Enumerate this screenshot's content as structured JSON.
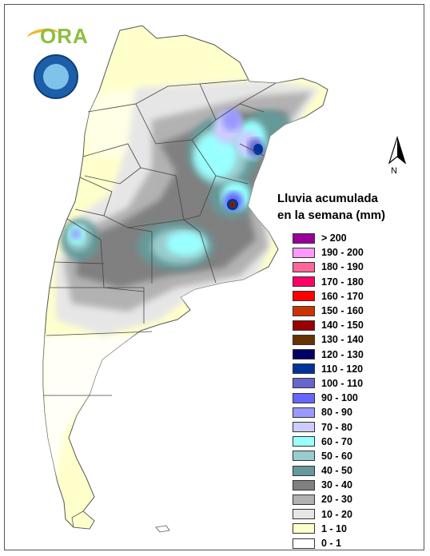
{
  "logo": {
    "text": "ORA"
  },
  "north_label": "N",
  "legend": {
    "title_line1": "Lluvia acumulada",
    "title_line2": "en la semana (mm)",
    "items": [
      {
        "label": "> 200",
        "color": "#990099"
      },
      {
        "label": "190 - 200",
        "color": "#ff99ff"
      },
      {
        "label": "180 - 190",
        "color": "#ff6699"
      },
      {
        "label": "170 - 180",
        "color": "#ff0066"
      },
      {
        "label": "160 - 170",
        "color": "#ff0000"
      },
      {
        "label": "150 - 160",
        "color": "#cc3300"
      },
      {
        "label": "140 - 150",
        "color": "#990000"
      },
      {
        "label": "130 - 140",
        "color": "#663300"
      },
      {
        "label": "120 - 130",
        "color": "#000066"
      },
      {
        "label": "110 - 120",
        "color": "#003399"
      },
      {
        "label": "100 - 110",
        "color": "#6666cc"
      },
      {
        "label": "90 - 100",
        "color": "#6666ff"
      },
      {
        "label": "80 - 90",
        "color": "#9999ff"
      },
      {
        "label": "70 - 80",
        "color": "#ccccff"
      },
      {
        "label": "60 - 70",
        "color": "#99ffff"
      },
      {
        "label": "50 - 60",
        "color": "#99cccc"
      },
      {
        "label": "40 - 50",
        "color": "#669999"
      },
      {
        "label": "30 - 40",
        "color": "#808080"
      },
      {
        "label": "20 - 30",
        "color": "#b2b2b2"
      },
      {
        "label": "10 - 20",
        "color": "#e6e6e6"
      },
      {
        "label": "1 - 10",
        "color": "#ffffcc"
      },
      {
        "label": "0 - 1",
        "color": "#ffffff"
      }
    ]
  }
}
